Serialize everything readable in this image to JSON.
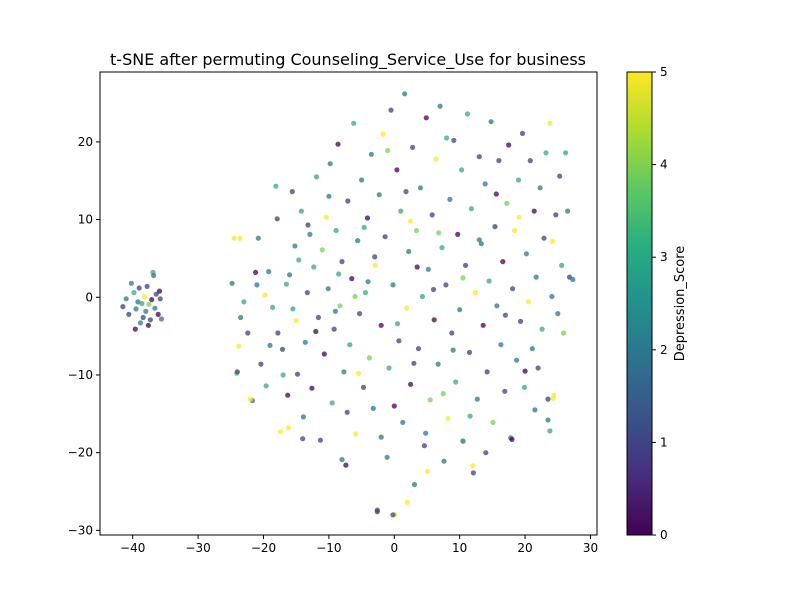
{
  "chart_data": {
    "type": "scatter",
    "title": "t-SNE after permuting Counseling_Service_Use for business",
    "xlabel": "",
    "ylabel": "",
    "xlim": [
      -45,
      31
    ],
    "ylim": [
      -30.6,
      29
    ],
    "x_ticks": [
      "−40",
      "−30",
      "−20",
      "−10",
      "0",
      "10",
      "20",
      "30"
    ],
    "y_ticks": [
      "−30",
      "−20",
      "−10",
      "0",
      "10",
      "20"
    ],
    "grid": false,
    "colorbar": {
      "label": "Depression_Score",
      "range": [
        0,
        5
      ],
      "ticks": [
        "0",
        "1",
        "2",
        "3",
        "4",
        "5"
      ],
      "colormap": "viridis",
      "colors": [
        "#440154",
        "#3b528b",
        "#21918c",
        "#5ec962",
        "#fde725"
      ]
    },
    "marker_alpha": 0.75,
    "points": [
      {
        "x": -41.5,
        "y": -1.2,
        "c": 1
      },
      {
        "x": -41.0,
        "y": -0.2,
        "c": 2
      },
      {
        "x": -40.6,
        "y": -2.2,
        "c": 1
      },
      {
        "x": -40.2,
        "y": 1.8,
        "c": 2
      },
      {
        "x": -39.8,
        "y": 0.6,
        "c": 3
      },
      {
        "x": -39.6,
        "y": -4.1,
        "c": 0
      },
      {
        "x": -39.5,
        "y": -1.5,
        "c": 2
      },
      {
        "x": -39.2,
        "y": -0.6,
        "c": 2
      },
      {
        "x": -39.0,
        "y": 1.2,
        "c": 1
      },
      {
        "x": -38.8,
        "y": -3.3,
        "c": 2
      },
      {
        "x": -38.6,
        "y": -0.8,
        "c": 3
      },
      {
        "x": -38.4,
        "y": -2.6,
        "c": 1
      },
      {
        "x": -38.2,
        "y": 0.1,
        "c": 5
      },
      {
        "x": -38.0,
        "y": -1.8,
        "c": 2
      },
      {
        "x": -37.8,
        "y": 1.4,
        "c": 1
      },
      {
        "x": -37.6,
        "y": -3.6,
        "c": 0
      },
      {
        "x": -37.5,
        "y": -0.9,
        "c": 4
      },
      {
        "x": -37.3,
        "y": -2.9,
        "c": 1
      },
      {
        "x": -37.1,
        "y": -0.3,
        "c": 0
      },
      {
        "x": -36.9,
        "y": 3.2,
        "c": 3
      },
      {
        "x": -36.8,
        "y": 2.8,
        "c": 2
      },
      {
        "x": -36.6,
        "y": -1.4,
        "c": 2
      },
      {
        "x": -36.4,
        "y": 0.4,
        "c": 1
      },
      {
        "x": -36.1,
        "y": -2.2,
        "c": 0
      },
      {
        "x": -35.8,
        "y": -0.2,
        "c": 1
      },
      {
        "x": -35.6,
        "y": -2.8,
        "c": 2
      },
      {
        "x": -35.9,
        "y": 0.8,
        "c": 0
      },
      {
        "x": -24.5,
        "y": 7.6,
        "c": 5
      },
      {
        "x": -24.8,
        "y": 1.8,
        "c": 2
      },
      {
        "x": -23.8,
        "y": -6.3,
        "c": 5
      },
      {
        "x": -24.1,
        "y": -9.8,
        "c": 4
      },
      {
        "x": -23.5,
        "y": -2.6,
        "c": 2
      },
      {
        "x": -23.0,
        "y": -0.6,
        "c": 3
      },
      {
        "x": -22.4,
        "y": -4.6,
        "c": 1
      },
      {
        "x": -21.7,
        "y": -13.3,
        "c": 2
      },
      {
        "x": -21.2,
        "y": 3.2,
        "c": 0
      },
      {
        "x": -20.8,
        "y": 7.6,
        "c": 2
      },
      {
        "x": -20.4,
        "y": -8.6,
        "c": 1
      },
      {
        "x": -19.8,
        "y": 0.3,
        "c": 5
      },
      {
        "x": -19.6,
        "y": -11.4,
        "c": 3
      },
      {
        "x": -19.2,
        "y": 3.3,
        "c": 2
      },
      {
        "x": -18.6,
        "y": -1.3,
        "c": 3
      },
      {
        "x": -18.1,
        "y": 14.3,
        "c": 3
      },
      {
        "x": -17.9,
        "y": 10.1,
        "c": 1
      },
      {
        "x": -17.8,
        "y": -4.6,
        "c": 1
      },
      {
        "x": -17.4,
        "y": -17.3,
        "c": 5
      },
      {
        "x": -17.1,
        "y": -6.7,
        "c": 1
      },
      {
        "x": -16.3,
        "y": -12.6,
        "c": 0
      },
      {
        "x": -16.2,
        "y": -16.8,
        "c": 5
      },
      {
        "x": -16.0,
        "y": 2.9,
        "c": 2
      },
      {
        "x": -15.6,
        "y": 13.6,
        "c": 1
      },
      {
        "x": -15.5,
        "y": -1.5,
        "c": 3
      },
      {
        "x": -15.2,
        "y": 6.6,
        "c": 2
      },
      {
        "x": -14.8,
        "y": -9.9,
        "c": 1
      },
      {
        "x": -14.6,
        "y": 4.8,
        "c": 3
      },
      {
        "x": -14.2,
        "y": 11.1,
        "c": 3
      },
      {
        "x": -13.9,
        "y": -15.4,
        "c": 2
      },
      {
        "x": -13.6,
        "y": -5.8,
        "c": 2
      },
      {
        "x": -13.3,
        "y": 0.6,
        "c": 1
      },
      {
        "x": -12.9,
        "y": 8.1,
        "c": 2
      },
      {
        "x": -12.6,
        "y": -11.7,
        "c": 0
      },
      {
        "x": -12.3,
        "y": 3.9,
        "c": 3
      },
      {
        "x": -11.9,
        "y": 15.5,
        "c": 3
      },
      {
        "x": -11.6,
        "y": -2.6,
        "c": 1
      },
      {
        "x": -11.3,
        "y": -18.4,
        "c": 1
      },
      {
        "x": -11.0,
        "y": 6.1,
        "c": 4
      },
      {
        "x": -10.7,
        "y": -7.3,
        "c": 0
      },
      {
        "x": -10.4,
        "y": 10.3,
        "c": 5
      },
      {
        "x": -10.1,
        "y": 1.1,
        "c": 2
      },
      {
        "x": -9.8,
        "y": 17.2,
        "c": 2
      },
      {
        "x": -9.5,
        "y": -13.6,
        "c": 3
      },
      {
        "x": -9.2,
        "y": -4.1,
        "c": 1
      },
      {
        "x": -8.9,
        "y": 8.6,
        "c": 3
      },
      {
        "x": -8.6,
        "y": 19.7,
        "c": 0
      },
      {
        "x": -8.3,
        "y": -1.1,
        "c": 4
      },
      {
        "x": -8.0,
        "y": 4.6,
        "c": 1
      },
      {
        "x": -7.7,
        "y": -9.6,
        "c": 2
      },
      {
        "x": -7.4,
        "y": -21.6,
        "c": 0
      },
      {
        "x": -7.1,
        "y": 12.4,
        "c": 1
      },
      {
        "x": -6.8,
        "y": -6.1,
        "c": 3
      },
      {
        "x": -6.5,
        "y": 2.4,
        "c": 0
      },
      {
        "x": -6.2,
        "y": 22.4,
        "c": 3
      },
      {
        "x": -5.9,
        "y": -17.6,
        "c": 5
      },
      {
        "x": -5.6,
        "y": 7.3,
        "c": 2
      },
      {
        "x": -5.3,
        "y": -2.1,
        "c": 1
      },
      {
        "x": -5.0,
        "y": 15.1,
        "c": 2
      },
      {
        "x": -4.7,
        "y": -11.6,
        "c": 1
      },
      {
        "x": -4.4,
        "y": 0.6,
        "c": 3
      },
      {
        "x": -4.1,
        "y": 10.2,
        "c": 0
      },
      {
        "x": -3.8,
        "y": -7.8,
        "c": 4
      },
      {
        "x": -3.5,
        "y": 18.4,
        "c": 2
      },
      {
        "x": -3.2,
        "y": -14.3,
        "c": 2
      },
      {
        "x": -2.9,
        "y": 4.1,
        "c": 5
      },
      {
        "x": -2.6,
        "y": -27.6,
        "c": 1
      },
      {
        "x": -2.3,
        "y": 13.2,
        "c": 2
      },
      {
        "x": -2.0,
        "y": -3.6,
        "c": 0
      },
      {
        "x": -1.7,
        "y": 21.0,
        "c": 5
      },
      {
        "x": -1.4,
        "y": 7.8,
        "c": 1
      },
      {
        "x": -1.1,
        "y": -20.6,
        "c": 2
      },
      {
        "x": -0.8,
        "y": -9.1,
        "c": 3
      },
      {
        "x": -0.5,
        "y": 24.1,
        "c": 1
      },
      {
        "x": -0.2,
        "y": 1.6,
        "c": 2
      },
      {
        "x": 0.1,
        "y": -28.0,
        "c": 5
      },
      {
        "x": 0.4,
        "y": 16.4,
        "c": 0
      },
      {
        "x": 0.7,
        "y": -5.6,
        "c": 1
      },
      {
        "x": 1.0,
        "y": 11.1,
        "c": 3
      },
      {
        "x": 1.3,
        "y": -16.1,
        "c": 2
      },
      {
        "x": 1.6,
        "y": 26.2,
        "c": 2
      },
      {
        "x": 1.9,
        "y": -1.4,
        "c": 5
      },
      {
        "x": 2.2,
        "y": 5.9,
        "c": 2
      },
      {
        "x": 2.5,
        "y": -11.2,
        "c": 0
      },
      {
        "x": 2.8,
        "y": 19.3,
        "c": 1
      },
      {
        "x": 3.1,
        "y": -24.1,
        "c": 2
      },
      {
        "x": 3.4,
        "y": 8.6,
        "c": 4
      },
      {
        "x": 3.7,
        "y": -6.6,
        "c": 1
      },
      {
        "x": 4.0,
        "y": 14.1,
        "c": 2
      },
      {
        "x": 4.3,
        "y": 0.1,
        "c": 3
      },
      {
        "x": 4.6,
        "y": -19.1,
        "c": 1
      },
      {
        "x": 4.9,
        "y": 23.1,
        "c": 0
      },
      {
        "x": 5.2,
        "y": 3.6,
        "c": 2
      },
      {
        "x": 5.5,
        "y": -13.2,
        "c": 4
      },
      {
        "x": 5.8,
        "y": 10.6,
        "c": 1
      },
      {
        "x": 6.1,
        "y": -2.9,
        "c": 0
      },
      {
        "x": 6.4,
        "y": 17.8,
        "c": 5
      },
      {
        "x": 6.7,
        "y": -8.6,
        "c": 2
      },
      {
        "x": 7.0,
        "y": 24.6,
        "c": 2
      },
      {
        "x": 7.3,
        "y": 6.4,
        "c": 3
      },
      {
        "x": 7.6,
        "y": -21.1,
        "c": 2
      },
      {
        "x": 7.9,
        "y": 1.6,
        "c": 1
      },
      {
        "x": 8.2,
        "y": -15.6,
        "c": 5
      },
      {
        "x": 8.5,
        "y": 12.6,
        "c": 2
      },
      {
        "x": 8.8,
        "y": -4.6,
        "c": 1
      },
      {
        "x": 9.1,
        "y": 20.2,
        "c": 1
      },
      {
        "x": 9.4,
        "y": -10.9,
        "c": 3
      },
      {
        "x": 9.7,
        "y": 8.1,
        "c": 0
      },
      {
        "x": 10.0,
        "y": -1.6,
        "c": 2
      },
      {
        "x": 10.3,
        "y": 16.4,
        "c": 3
      },
      {
        "x": 10.6,
        "y": -18.6,
        "c": 5
      },
      {
        "x": 10.9,
        "y": 4.1,
        "c": 1
      },
      {
        "x": 11.2,
        "y": 23.6,
        "c": 3
      },
      {
        "x": 11.5,
        "y": -7.1,
        "c": 1
      },
      {
        "x": 11.8,
        "y": 11.4,
        "c": 3
      },
      {
        "x": 12.1,
        "y": -22.6,
        "c": 1
      },
      {
        "x": 12.4,
        "y": 0.6,
        "c": 5
      },
      {
        "x": 12.7,
        "y": -13.1,
        "c": 2
      },
      {
        "x": 13.0,
        "y": 18.1,
        "c": 1
      },
      {
        "x": 13.3,
        "y": 6.9,
        "c": 2
      },
      {
        "x": 13.6,
        "y": -3.6,
        "c": 0
      },
      {
        "x": 13.9,
        "y": 14.6,
        "c": 2
      },
      {
        "x": 14.2,
        "y": -9.6,
        "c": 1
      },
      {
        "x": 14.5,
        "y": 2.1,
        "c": 3
      },
      {
        "x": 14.8,
        "y": 22.6,
        "c": 2
      },
      {
        "x": 15.1,
        "y": -16.1,
        "c": 4
      },
      {
        "x": 15.4,
        "y": 9.1,
        "c": 1
      },
      {
        "x": 15.7,
        "y": -1.1,
        "c": 2
      },
      {
        "x": 16.0,
        "y": 17.6,
        "c": 1
      },
      {
        "x": 16.3,
        "y": -6.1,
        "c": 2
      },
      {
        "x": 16.6,
        "y": 4.6,
        "c": 0
      },
      {
        "x": 16.9,
        "y": -12.1,
        "c": 1
      },
      {
        "x": 17.2,
        "y": 12.1,
        "c": 4
      },
      {
        "x": 17.5,
        "y": 19.6,
        "c": 0
      },
      {
        "x": 17.8,
        "y": -18.1,
        "c": 2
      },
      {
        "x": 18.1,
        "y": 1.1,
        "c": 1
      },
      {
        "x": 18.4,
        "y": 8.6,
        "c": 5
      },
      {
        "x": 18.7,
        "y": -8.1,
        "c": 2
      },
      {
        "x": 19.0,
        "y": 15.1,
        "c": 3
      },
      {
        "x": 19.3,
        "y": -3.1,
        "c": 1
      },
      {
        "x": 19.6,
        "y": 21.1,
        "c": 1
      },
      {
        "x": 19.9,
        "y": -11.6,
        "c": 3
      },
      {
        "x": 20.2,
        "y": 5.6,
        "c": 2
      },
      {
        "x": 20.5,
        "y": -0.6,
        "c": 5
      },
      {
        "x": 20.8,
        "y": 17.6,
        "c": 1
      },
      {
        "x": 21.1,
        "y": -6.6,
        "c": 2
      },
      {
        "x": 21.4,
        "y": 11.1,
        "c": 0
      },
      {
        "x": 21.7,
        "y": 2.6,
        "c": 2
      },
      {
        "x": 22.0,
        "y": -9.1,
        "c": 1
      },
      {
        "x": 22.3,
        "y": 14.1,
        "c": 2
      },
      {
        "x": 22.6,
        "y": -4.1,
        "c": 3
      },
      {
        "x": 22.9,
        "y": 7.6,
        "c": 1
      },
      {
        "x": 23.2,
        "y": 18.6,
        "c": 3
      },
      {
        "x": 23.5,
        "y": -13.1,
        "c": 1
      },
      {
        "x": 23.8,
        "y": 22.4,
        "c": 5
      },
      {
        "x": 24.1,
        "y": 0.1,
        "c": 2
      },
      {
        "x": 24.4,
        "y": -12.6,
        "c": 5
      },
      {
        "x": 24.7,
        "y": 10.6,
        "c": 1
      },
      {
        "x": 25.0,
        "y": -2.1,
        "c": 2
      },
      {
        "x": 25.3,
        "y": 15.6,
        "c": 1
      },
      {
        "x": 25.6,
        "y": 4.1,
        "c": 3
      },
      {
        "x": 25.9,
        "y": -4.6,
        "c": 4
      },
      {
        "x": 26.2,
        "y": 18.6,
        "c": 3
      },
      {
        "x": 26.5,
        "y": 11.1,
        "c": 2
      },
      {
        "x": 26.8,
        "y": 2.6,
        "c": 1
      },
      {
        "x": 27.3,
        "y": 2.3,
        "c": 2
      },
      {
        "x": 24.2,
        "y": 7.2,
        "c": 5
      },
      {
        "x": 23.8,
        "y": -17.2,
        "c": 3
      },
      {
        "x": 23.5,
        "y": -15.8,
        "c": 2
      },
      {
        "x": 24.3,
        "y": -13.0,
        "c": 5
      },
      {
        "x": 19.1,
        "y": 10.3,
        "c": 5
      },
      {
        "x": 18.0,
        "y": -18.3,
        "c": 0
      },
      {
        "x": 12.0,
        "y": -21.7,
        "c": 5
      },
      {
        "x": 10.5,
        "y": -18.5,
        "c": 2
      },
      {
        "x": 5.1,
        "y": -22.4,
        "c": 5
      },
      {
        "x": 2.0,
        "y": -26.4,
        "c": 5
      },
      {
        "x": -2.6,
        "y": -27.4,
        "c": 1
      },
      {
        "x": -0.2,
        "y": -28.0,
        "c": 1
      },
      {
        "x": -8.0,
        "y": -20.9,
        "c": 2
      },
      {
        "x": -14.0,
        "y": -18.2,
        "c": 1
      },
      {
        "x": -22.0,
        "y": -13.1,
        "c": 5
      },
      {
        "x": -24.0,
        "y": -9.6,
        "c": 1
      },
      {
        "x": -23.6,
        "y": 7.6,
        "c": 5
      },
      {
        "x": -21.0,
        "y": 1.6,
        "c": 2
      },
      {
        "x": -6.0,
        "y": 0.1,
        "c": 4
      },
      {
        "x": -9.0,
        "y": -1.8,
        "c": 2
      },
      {
        "x": -3.0,
        "y": 5.2,
        "c": 1
      },
      {
        "x": 0.5,
        "y": -3.4,
        "c": 3
      },
      {
        "x": 3.5,
        "y": 3.9,
        "c": 0
      },
      {
        "x": 6.8,
        "y": 8.3,
        "c": 4
      },
      {
        "x": 9.0,
        "y": -6.8,
        "c": 2
      },
      {
        "x": -12.0,
        "y": -4.4,
        "c": 0
      },
      {
        "x": -16.5,
        "y": 1.7,
        "c": 3
      },
      {
        "x": -19.0,
        "y": -6.2,
        "c": 2
      },
      {
        "x": -4.6,
        "y": 9.0,
        "c": 3
      },
      {
        "x": 1.8,
        "y": 13.6,
        "c": 1
      },
      {
        "x": 7.5,
        "y": -12.4,
        "c": 4
      },
      {
        "x": 13.0,
        "y": 7.4,
        "c": 2
      },
      {
        "x": 17.0,
        "y": -2.3,
        "c": 1
      },
      {
        "x": -7.2,
        "y": -14.8,
        "c": 1
      },
      {
        "x": 4.8,
        "y": -17.5,
        "c": 2
      },
      {
        "x": -1.0,
        "y": 18.9,
        "c": 4
      },
      {
        "x": -13.2,
        "y": 9.3,
        "c": 1
      },
      {
        "x": 11.6,
        "y": -15.3,
        "c": 3
      },
      {
        "x": 15.6,
        "y": 13.3,
        "c": 0
      },
      {
        "x": -10.0,
        "y": 13.0,
        "c": 2
      },
      {
        "x": 8.0,
        "y": 20.5,
        "c": 3
      },
      {
        "x": -5.5,
        "y": -9.8,
        "c": 5
      },
      {
        "x": 6.0,
        "y": 1.0,
        "c": 1
      },
      {
        "x": -17.0,
        "y": -10.0,
        "c": 3
      },
      {
        "x": 21.5,
        "y": -14.5,
        "c": 2
      },
      {
        "x": 0.0,
        "y": -14.0,
        "c": 0
      },
      {
        "x": -8.5,
        "y": 3.0,
        "c": 3
      },
      {
        "x": 3.0,
        "y": -8.5,
        "c": 1
      },
      {
        "x": 10.5,
        "y": 2.5,
        "c": 4
      },
      {
        "x": -2.0,
        "y": -18.0,
        "c": 2
      },
      {
        "x": 14.0,
        "y": -20.0,
        "c": 1
      },
      {
        "x": -15.0,
        "y": -3.0,
        "c": 5
      },
      {
        "x": 20.0,
        "y": -9.5,
        "c": 0
      },
      {
        "x": -4.0,
        "y": 2.0,
        "c": 2
      },
      {
        "x": 2.5,
        "y": 9.8,
        "c": 5
      }
    ]
  }
}
